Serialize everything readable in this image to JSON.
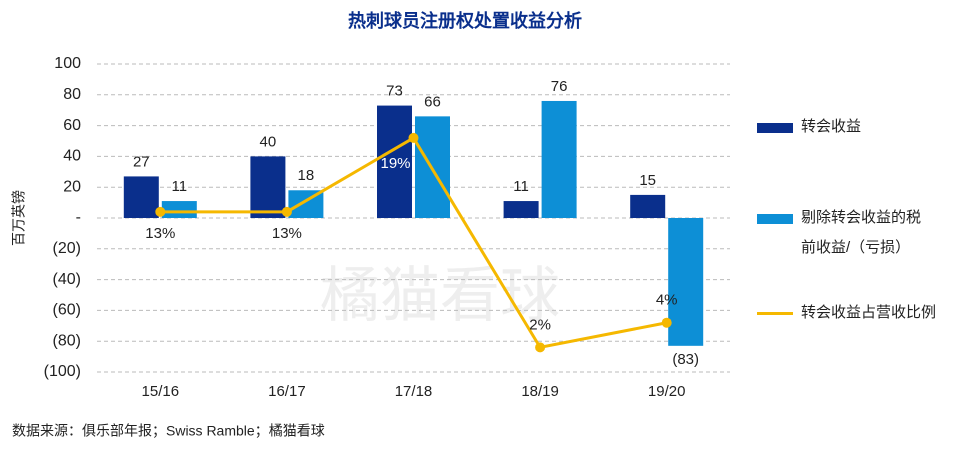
{
  "chart_data": {
    "type": "bar",
    "title": "热刺球员注册权处置收益分析",
    "y_label": "百万英镑",
    "source": "数据来源：俱乐部年报；Swiss Ramble；橘猫看球",
    "watermark": "橘猫看球",
    "categories": [
      "15/16",
      "16/17",
      "17/18",
      "18/19",
      "19/20"
    ],
    "series": [
      {
        "name": "转会收益",
        "color": "#0a2f8c",
        "values": [
          27,
          40,
          73,
          11,
          15
        ]
      },
      {
        "name": "剔除转会收益的税前收益/（亏损）",
        "color": "#0d8fd6",
        "values": [
          11,
          18,
          66,
          76,
          -83
        ],
        "value_labels": [
          "11",
          "18",
          "66",
          "76",
          "(83)"
        ]
      },
      {
        "name": "转会收益占营收比例",
        "color": "#f5b800",
        "type": "line",
        "axis": "y2",
        "values": [
          13,
          13,
          19,
          2,
          4
        ],
        "value_labels": [
          "13%",
          "13%",
          "19%",
          "2%",
          "4%"
        ]
      }
    ],
    "ylim": [
      -100,
      100
    ],
    "yticks": [
      {
        "value": -100,
        "label": "(100)"
      },
      {
        "value": -80,
        "label": "(80)"
      },
      {
        "value": -60,
        "label": "(60)"
      },
      {
        "value": -40,
        "label": "(40)"
      },
      {
        "value": -20,
        "label": "(20)"
      },
      {
        "value": 0,
        "label": "-"
      },
      20,
      40,
      60,
      80,
      100
    ],
    "y2lim": [
      0,
      25
    ],
    "grid": true
  }
}
